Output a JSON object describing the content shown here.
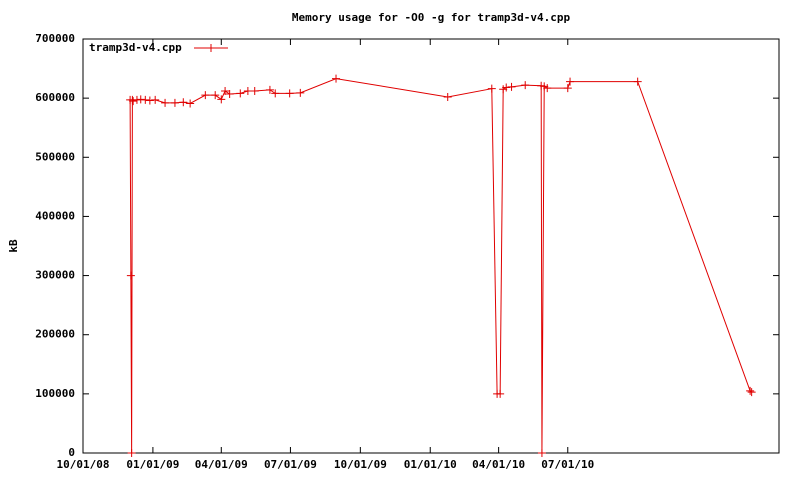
{
  "chart_data": {
    "type": "line",
    "title": "Memory usage for -O0 -g for tramp3d-v4.cpp",
    "y_label": "kB",
    "x": [
      "2008-12-02",
      "2008-12-03",
      "2008-12-04",
      "2008-12-05",
      "2008-12-06",
      "2008-12-11",
      "2008-12-16",
      "2008-12-22",
      "2008-12-28",
      "2009-01-04",
      "2009-01-17",
      "2009-01-30",
      "2009-02-10",
      "2009-02-19",
      "2009-03-11",
      "2009-03-24",
      "2009-04-01",
      "2009-04-06",
      "2009-04-12",
      "2009-04-26",
      "2009-05-06",
      "2009-05-15",
      "2009-06-04",
      "2009-06-11",
      "2009-06-30",
      "2009-07-14",
      "2009-08-30",
      "2010-01-24",
      "2010-03-23",
      "2010-03-30",
      "2010-04-03",
      "2010-04-07",
      "2010-04-11",
      "2010-04-18",
      "2010-05-06",
      "2010-05-27",
      "2010-05-28",
      "2010-05-31",
      "2010-06-04",
      "2010-07-01",
      "2010-07-04",
      "2010-10-01",
      "2011-02-26",
      "2011-02-28"
    ],
    "series": [
      {
        "name": "tramp3d-v4.cpp",
        "color": "#e00000",
        "values": [
          597000,
          300000,
          0,
          597000,
          595000,
          597000,
          598000,
          597000,
          596000,
          597000,
          592000,
          592000,
          593000,
          591000,
          605000,
          605000,
          598000,
          612000,
          607000,
          608000,
          612000,
          612000,
          614000,
          608000,
          608000,
          609000,
          633000,
          602000,
          616000,
          100000,
          100000,
          615000,
          618000,
          619000,
          622000,
          621000,
          0,
          620000,
          617000,
          617000,
          628000,
          628000,
          105000,
          103000
        ]
      }
    ],
    "xlim": [
      "2008-10-01",
      "2011-04-05"
    ],
    "xticks": [
      {
        "value": "2008-10-01",
        "label": "10/01/08"
      },
      {
        "value": "2009-01-01",
        "label": "01/01/09"
      },
      {
        "value": "2009-04-01",
        "label": "04/01/09"
      },
      {
        "value": "2009-07-01",
        "label": "07/01/09"
      },
      {
        "value": "2009-10-01",
        "label": "10/01/09"
      },
      {
        "value": "2010-01-01",
        "label": "01/01/10"
      },
      {
        "value": "2010-04-01",
        "label": "04/01/10"
      },
      {
        "value": "2010-07-01",
        "label": "07/01/10"
      }
    ],
    "ylim": [
      0,
      700000
    ],
    "yticks": [
      0,
      100000,
      200000,
      300000,
      400000,
      500000,
      600000,
      700000
    ],
    "legend": "top-left"
  }
}
